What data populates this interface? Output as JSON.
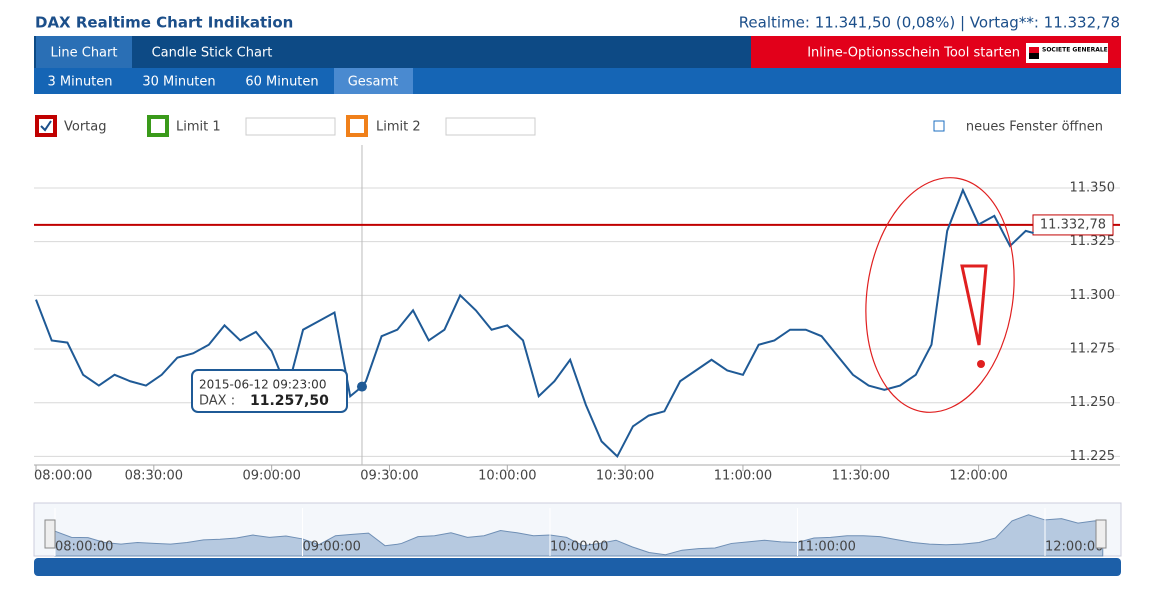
{
  "header": {
    "title": "DAX Realtime Chart Indikation",
    "quote": "Realtime: 11.341,50 (0,08%) | Vortag**: 11.332,78"
  },
  "tabs": [
    "Line Chart",
    "Candle Stick Chart"
  ],
  "button": "Inline-Optionsschein Tool starten",
  "logo": "SOCIETE GENERALE",
  "ranges": [
    "3 Minuten",
    "30 Minuten",
    "60 Minuten",
    "Gesamt"
  ],
  "options": [
    "Vortag",
    "Limit 1",
    "Limit 2"
  ],
  "link": "neues Fenster öffnen",
  "chart_data": {
    "type": "line",
    "series": [
      {
        "name": "DAX",
        "color": "#1f5a96",
        "x": [
          "08:00:00",
          "08:04:00",
          "08:08:00",
          "08:12:00",
          "08:16:00",
          "08:20:00",
          "08:24:00",
          "08:28:00",
          "08:32:00",
          "08:36:00",
          "08:40:00",
          "08:44:00",
          "08:48:00",
          "08:52:00",
          "08:56:00",
          "09:00:00",
          "09:04:00",
          "09:08:00",
          "09:12:00",
          "09:16:00",
          "09:20:00",
          "09:23:00",
          "09:24:00",
          "09:28:00",
          "09:32:00",
          "09:36:00",
          "09:40:00",
          "09:44:00",
          "09:48:00",
          "09:52:00",
          "09:56:00",
          "10:00:00",
          "10:04:00",
          "10:08:00",
          "10:12:00",
          "10:16:00",
          "10:20:00",
          "10:24:00",
          "10:28:00",
          "10:32:00",
          "10:36:00",
          "10:40:00",
          "10:44:00",
          "10:48:00",
          "10:52:00",
          "10:56:00",
          "11:00:00",
          "11:04:00",
          "11:08:00",
          "11:12:00",
          "11:16:00",
          "11:20:00",
          "11:24:00",
          "11:28:00",
          "11:32:00",
          "11:36:00",
          "11:40:00",
          "11:44:00",
          "11:48:00",
          "11:52:00",
          "11:56:00",
          "12:00:00",
          "12:04:00",
          "12:08:00",
          "12:12:00",
          "12:14:00"
        ],
        "values": [
          11298,
          11279,
          11278,
          11263,
          11258,
          11263,
          11260,
          11258,
          11263,
          11271,
          11273,
          11277,
          11286,
          11279,
          11283,
          11274,
          11256,
          11284,
          11288,
          11292,
          11253,
          11257.5,
          11260,
          11281,
          11284,
          11293,
          11279,
          11284,
          11300,
          11293,
          11284,
          11286,
          11279,
          11253,
          11260,
          11270,
          11249,
          11232,
          11225,
          11239,
          11244,
          11246,
          11260,
          11265,
          11270,
          11265,
          11263,
          11277,
          11279,
          11284,
          11284,
          11281,
          11272,
          11263,
          11258,
          11256,
          11258,
          11263,
          11277,
          11330,
          11349,
          11333,
          11337,
          11323,
          11330,
          11329
        ]
      }
    ],
    "xlim": [
      "08:00:00",
      "12:36:00"
    ],
    "xticks": [
      "08:00:00",
      "08:30:00",
      "09:00:00",
      "09:30:00",
      "10:00:00",
      "10:30:00",
      "11:00:00",
      "11:30:00",
      "12:00:00"
    ],
    "ylim": [
      11221,
      11370
    ],
    "yticks": [
      {
        "value": 11225,
        "label": "11.225"
      },
      {
        "value": 11250,
        "label": "11.250"
      },
      {
        "value": 11275,
        "label": "11.275"
      },
      {
        "value": 11300,
        "label": "11.300"
      },
      {
        "value": 11325,
        "label": "11.325"
      },
      {
        "value": 11350,
        "label": "11.350"
      }
    ],
    "grid": true,
    "reference": {
      "value": 11332.78,
      "label": "11.332,78",
      "color": "#c00000"
    },
    "tooltip": {
      "time": "2015-06-12 09:23:00",
      "name": "DAX :",
      "value": 11257.5,
      "label": "11.257,50"
    }
  }
}
